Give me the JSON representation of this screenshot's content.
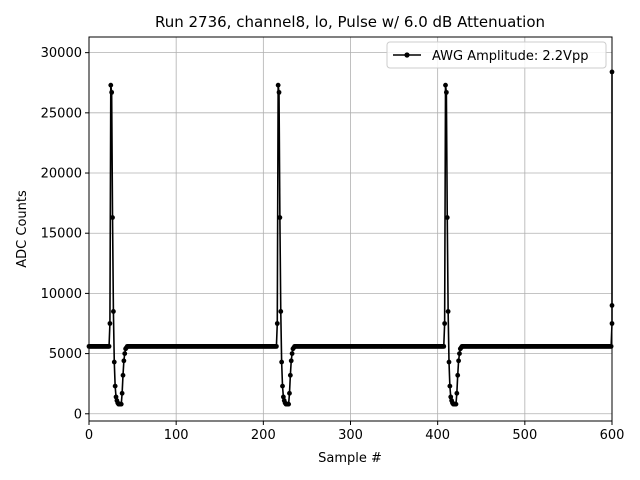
{
  "chart_data": {
    "type": "line",
    "title": "Run 2736, channel8, lo, Pulse w/ 6.0 dB Attenuation",
    "xlabel": "Sample #",
    "ylabel": "ADC Counts",
    "xlim": [
      0,
      600
    ],
    "ylim": [
      -600,
      31300
    ],
    "x_ticks": [
      0,
      100,
      200,
      300,
      400,
      500,
      600
    ],
    "y_ticks": [
      0,
      5000,
      10000,
      15000,
      20000,
      25000,
      30000
    ],
    "grid": true,
    "legend_position": "top-right",
    "colors": {
      "line": "#000000",
      "grid": "#b0b0b0"
    },
    "series": [
      {
        "name": "AWG Amplitude: 2.2Vpp",
        "marker": "circle",
        "baseline": 5600,
        "period": 192,
        "pulse_starts": [
          24,
          216,
          408,
          600
        ],
        "pulse_shape": [
          7500,
          27300,
          26700,
          16300,
          8500,
          4300,
          2300,
          1400,
          1100,
          900,
          800,
          800,
          800,
          800,
          1700,
          3200,
          4400,
          5000,
          5400,
          5500
        ]
      }
    ]
  }
}
